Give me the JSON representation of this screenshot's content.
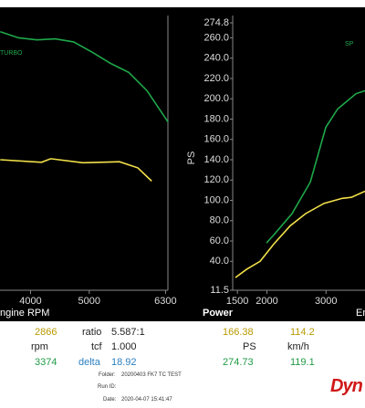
{
  "chart_data": [
    {
      "type": "line",
      "xlabel": "ngine RPM",
      "xlim": [
        3480,
        6340
      ],
      "xticks": [
        4000,
        5000,
        6300
      ],
      "ylim": [
        11.5,
        274.8
      ],
      "series": [
        {
          "name": "TURBO",
          "color": "#1fa84a",
          "x": [
            3484,
            3797,
            4109,
            4422,
            4734,
            5047,
            5359,
            5672,
            5984,
            6344
          ],
          "values": [
            266,
            260,
            258,
            259,
            256,
            246,
            235,
            226,
            208,
            177
          ]
        },
        {
          "color": "#f2e04a",
          "x": [
            3484,
            4187,
            4344,
            4891,
            5516,
            5828,
            6063
          ],
          "values": [
            140,
            137.5,
            141,
            137,
            138,
            132,
            119
          ]
        }
      ]
    },
    {
      "type": "line",
      "title": "Power",
      "xlabel": "En",
      "ylabel": "PS",
      "xlim": [
        1420,
        3660
      ],
      "xticks": [
        1500,
        2000,
        3000
      ],
      "ylim": [
        11.5,
        274.8
      ],
      "yticks": [
        274.8,
        {
          "value": 260,
          "label": "260.0"
        },
        {
          "value": 240,
          "label": "240.0"
        },
        {
          "value": 220,
          "label": "220.0"
        },
        {
          "value": 200,
          "label": "200.0"
        },
        {
          "value": 180,
          "label": "180.0"
        },
        {
          "value": 160,
          "label": "160.0"
        },
        {
          "value": 140,
          "label": "140.0"
        },
        {
          "value": 120,
          "label": "120.0"
        },
        {
          "value": 100,
          "label": "100.0"
        },
        {
          "value": 80,
          "label": "80.0"
        },
        {
          "value": 60,
          "label": "60.0"
        },
        {
          "value": 40,
          "label": "40.0"
        },
        11.5
      ],
      "series": [
        {
          "name": "SP",
          "color": "#1fa84a",
          "x": [
            1992,
            2116,
            2425,
            2734,
            2997,
            3197,
            3507,
            3661
          ],
          "values": [
            58,
            66,
            87,
            118,
            172,
            190,
            205,
            208
          ]
        },
        {
          "color": "#f2e04a",
          "x": [
            1466,
            1652,
            1884,
            2116,
            2394,
            2656,
            2966,
            3275,
            3429,
            3661
          ],
          "values": [
            24,
            32,
            40,
            57,
            75,
            87,
            97,
            102,
            103,
            109
          ]
        }
      ]
    }
  ],
  "readout": {
    "rows": [
      [
        "2866",
        "ratio",
        "5.587:1",
        "166.38",
        "114.2"
      ],
      [
        "rpm",
        "tcf",
        "1.000",
        "PS",
        "km/h"
      ],
      [
        "3374",
        "delta",
        "18.92",
        "274.73",
        "119.1"
      ]
    ],
    "info": {
      "folder_label": "Folder:",
      "folder": "20200403 FK7 TC TEST",
      "run_label": "Run ID:",
      "date_label": "Date:",
      "date": "2020-04-07 15:41:47"
    },
    "logo": "Dyn"
  }
}
